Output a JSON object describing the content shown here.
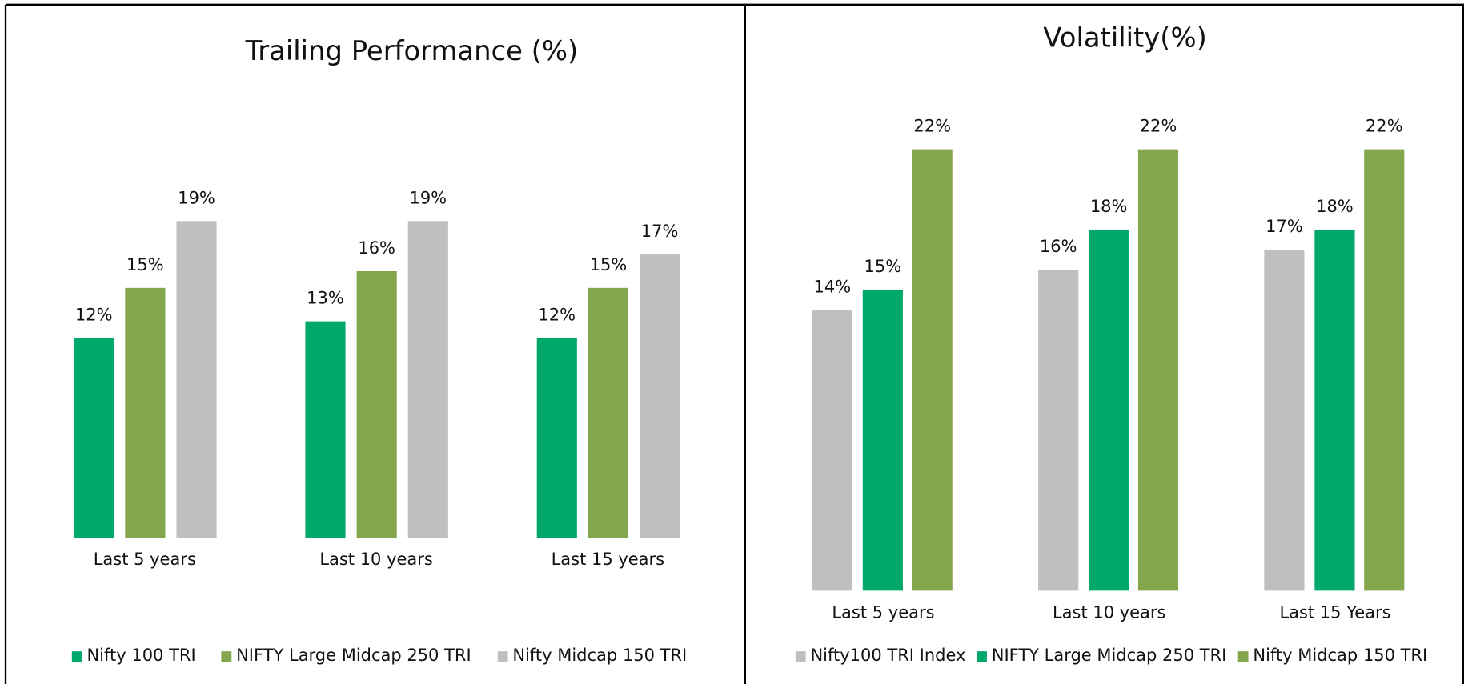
{
  "chart_data": [
    {
      "type": "bar",
      "title": "Trailing Performance (%)",
      "categories": [
        "Last 5 years",
        "Last 10 years",
        "Last 15 years"
      ],
      "series": [
        {
          "name": "Nifty 100 TRI",
          "color": "#00a86b",
          "values": [
            12,
            13,
            12
          ],
          "value_labels": [
            "12%",
            "13%",
            "12%"
          ]
        },
        {
          "name": "NIFTY Large Midcap 250 TRI",
          "color": "#84a64c",
          "values": [
            15,
            16,
            15
          ],
          "value_labels": [
            "15%",
            "16%",
            "15%"
          ]
        },
        {
          "name": "Nifty Midcap 150 TRI",
          "color": "#bfbfbf",
          "values": [
            19,
            19,
            17
          ],
          "value_labels": [
            "19%",
            "19%",
            "17%"
          ]
        }
      ]
    },
    {
      "type": "bar",
      "title": "Volatility(%)",
      "categories": [
        "Last 5 years",
        "Last 10 years",
        "Last 15 Years"
      ],
      "series": [
        {
          "name": "Nifty100 TRI Index",
          "color": "#bfbfbf",
          "values": [
            14,
            16,
            17
          ],
          "value_labels": [
            "14%",
            "16%",
            "17%"
          ]
        },
        {
          "name": "NIFTY Large Midcap 250 TRI",
          "color": "#00a86b",
          "values": [
            15,
            18,
            18
          ],
          "value_labels": [
            "15%",
            "18%",
            "18%"
          ]
        },
        {
          "name": "Nifty Midcap 150 TRI",
          "color": "#84a64c",
          "values": [
            22,
            22,
            22
          ],
          "value_labels": [
            "22%",
            "22%",
            "22%"
          ]
        }
      ]
    }
  ]
}
